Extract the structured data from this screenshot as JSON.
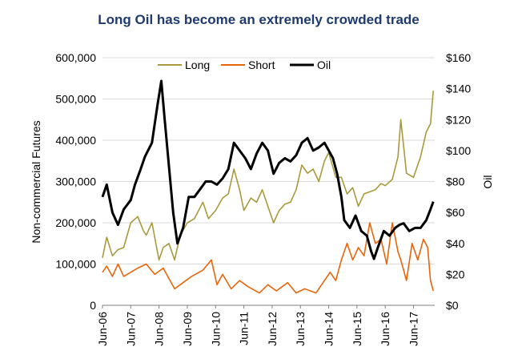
{
  "chart_data": {
    "type": "line",
    "title": "Long Oil has become an extremely crowded trade",
    "ylabel_left": "Non-commercial Futures",
    "ylabel_right": "Oil",
    "ylim_left": [
      0,
      600000
    ],
    "ylim_right": [
      0,
      160
    ],
    "yticks_left": [
      "0",
      "100,000",
      "200,000",
      "300,000",
      "400,000",
      "500,000",
      "600,000"
    ],
    "yticks_right": [
      "$0",
      "$20",
      "$40",
      "$60",
      "$80",
      "$100",
      "$120",
      "$140",
      "$160"
    ],
    "xticks": [
      "Jun-06",
      "Jun-07",
      "Jun-08",
      "Jun-09",
      "Jun-10",
      "Jun-11",
      "Jun-12",
      "Jun-13",
      "Jun-14",
      "Jun-15",
      "Jun-16",
      "Jun-17"
    ],
    "grid": true,
    "legend": "top-center",
    "colors": {
      "Long": "#a89a3c",
      "Short": "#e8650a",
      "Oil": "#000000",
      "title": "#1f3a6e",
      "grid": "#d9d9d9"
    },
    "series": [
      {
        "name": "Long",
        "axis": "left",
        "x": [
          2006.45,
          2006.6,
          2006.8,
          2007.0,
          2007.2,
          2007.45,
          2007.7,
          2007.9,
          2008.0,
          2008.2,
          2008.45,
          2008.6,
          2008.8,
          2009.0,
          2009.2,
          2009.45,
          2009.7,
          2010.0,
          2010.2,
          2010.45,
          2010.7,
          2010.9,
          2011.1,
          2011.3,
          2011.45,
          2011.7,
          2011.9,
          2012.1,
          2012.3,
          2012.5,
          2012.7,
          2012.9,
          2013.1,
          2013.3,
          2013.5,
          2013.7,
          2013.9,
          2014.1,
          2014.3,
          2014.45,
          2014.7,
          2014.9,
          2015.1,
          2015.3,
          2015.5,
          2015.7,
          2015.9,
          2016.1,
          2016.3,
          2016.45,
          2016.7,
          2016.9,
          2017.0,
          2017.2,
          2017.45,
          2017.7,
          2017.9,
          2018.05,
          2018.15
        ],
        "values": [
          115000,
          165000,
          120000,
          135000,
          140000,
          200000,
          215000,
          180000,
          170000,
          200000,
          110000,
          140000,
          150000,
          110000,
          170000,
          200000,
          210000,
          250000,
          210000,
          230000,
          260000,
          270000,
          330000,
          280000,
          230000,
          260000,
          250000,
          280000,
          240000,
          200000,
          230000,
          245000,
          250000,
          280000,
          340000,
          320000,
          330000,
          300000,
          350000,
          370000,
          310000,
          310000,
          270000,
          285000,
          240000,
          270000,
          275000,
          280000,
          295000,
          290000,
          305000,
          360000,
          450000,
          320000,
          310000,
          360000,
          420000,
          440000,
          520000
        ]
      },
      {
        "name": "Short",
        "axis": "left",
        "x": [
          2006.45,
          2006.6,
          2006.8,
          2007.0,
          2007.2,
          2007.45,
          2007.7,
          2008.0,
          2008.3,
          2008.6,
          2009.0,
          2009.3,
          2009.6,
          2010.0,
          2010.3,
          2010.5,
          2010.7,
          2011.0,
          2011.3,
          2011.6,
          2012.0,
          2012.3,
          2012.6,
          2013.0,
          2013.3,
          2013.6,
          2014.0,
          2014.3,
          2014.5,
          2014.7,
          2014.9,
          2015.1,
          2015.3,
          2015.5,
          2015.7,
          2015.9,
          2016.1,
          2016.3,
          2016.5,
          2016.7,
          2016.9,
          2017.0,
          2017.2,
          2017.4,
          2017.6,
          2017.8,
          2017.95,
          2018.05,
          2018.15
        ],
        "values": [
          80000,
          95000,
          70000,
          100000,
          70000,
          80000,
          90000,
          100000,
          75000,
          90000,
          40000,
          55000,
          70000,
          85000,
          110000,
          50000,
          75000,
          40000,
          60000,
          45000,
          30000,
          50000,
          35000,
          55000,
          30000,
          40000,
          30000,
          60000,
          80000,
          60000,
          110000,
          150000,
          110000,
          140000,
          120000,
          200000,
          150000,
          160000,
          100000,
          200000,
          130000,
          110000,
          60000,
          150000,
          110000,
          160000,
          140000,
          60000,
          35000
        ]
      },
      {
        "name": "Oil",
        "axis": "right",
        "x": [
          2006.45,
          2006.6,
          2006.8,
          2007.0,
          2007.2,
          2007.45,
          2007.6,
          2007.8,
          2007.95,
          2008.2,
          2008.4,
          2008.53,
          2008.65,
          2008.8,
          2008.95,
          2009.1,
          2009.3,
          2009.5,
          2009.7,
          2009.9,
          2010.1,
          2010.3,
          2010.5,
          2010.7,
          2010.9,
          2011.1,
          2011.3,
          2011.5,
          2011.7,
          2011.9,
          2012.1,
          2012.3,
          2012.5,
          2012.7,
          2012.9,
          2013.1,
          2013.3,
          2013.5,
          2013.7,
          2013.9,
          2014.1,
          2014.3,
          2014.45,
          2014.6,
          2014.75,
          2014.9,
          2015.0,
          2015.2,
          2015.4,
          2015.6,
          2015.8,
          2015.95,
          2016.05,
          2016.2,
          2016.4,
          2016.6,
          2016.8,
          2016.95,
          2017.1,
          2017.3,
          2017.5,
          2017.7,
          2017.9,
          2018.05,
          2018.15
        ],
        "values": [
          70,
          78,
          60,
          52,
          62,
          68,
          78,
          88,
          96,
          105,
          130,
          145,
          120,
          90,
          60,
          40,
          50,
          70,
          70,
          75,
          80,
          80,
          78,
          82,
          88,
          105,
          100,
          95,
          88,
          98,
          105,
          100,
          85,
          92,
          95,
          93,
          97,
          105,
          108,
          100,
          102,
          105,
          100,
          95,
          85,
          70,
          55,
          50,
          58,
          48,
          45,
          35,
          30,
          38,
          48,
          45,
          50,
          52,
          53,
          48,
          50,
          50,
          55,
          62,
          67
        ]
      }
    ]
  }
}
